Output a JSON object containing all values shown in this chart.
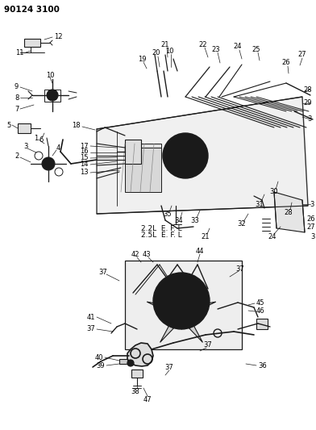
{
  "title_code": "90124 3100",
  "bg_color": "#ffffff",
  "diagram_label1": "2.2L  E. F. L",
  "diagram_label2": "2.5L  E. F. L",
  "title_fontsize": 7.5,
  "label_fontsize": 6.0
}
